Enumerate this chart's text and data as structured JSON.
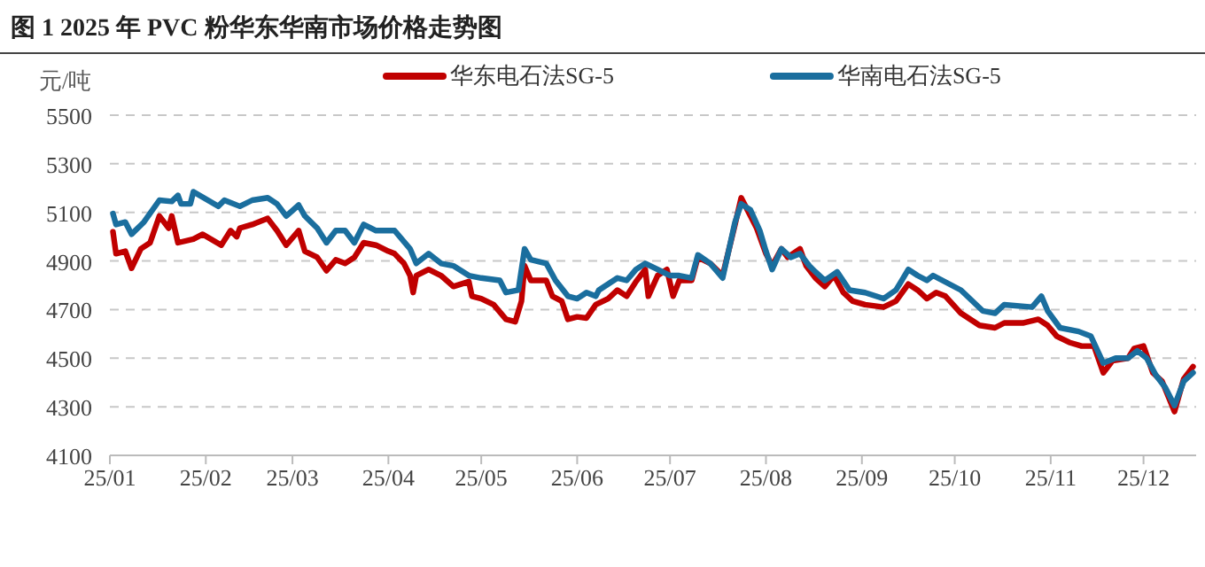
{
  "chart_data": {
    "type": "line",
    "title": "图 1 2025 年 PVC 粉华东华南市场价格走势图",
    "ylabel": "元/吨",
    "xlim": [
      "2025-01-01",
      "2025-12-18"
    ],
    "xticks": [
      {
        "value": "2025-01-01",
        "label": "25/01"
      },
      {
        "value": "2025-02-01",
        "label": "25/02"
      },
      {
        "value": "2025-03-01",
        "label": "25/03"
      },
      {
        "value": "2025-04-01",
        "label": "25/04"
      },
      {
        "value": "2025-05-01",
        "label": "25/05"
      },
      {
        "value": "2025-06-01",
        "label": "25/06"
      },
      {
        "value": "2025-07-01",
        "label": "25/07"
      },
      {
        "value": "2025-08-01",
        "label": "25/08"
      },
      {
        "value": "2025-09-01",
        "label": "25/09"
      },
      {
        "value": "2025-10-01",
        "label": "25/10"
      },
      {
        "value": "2025-11-01",
        "label": "25/11"
      },
      {
        "value": "2025-12-01",
        "label": "25/12"
      }
    ],
    "ylim": [
      4100,
      5500
    ],
    "yticks": [
      4100,
      4300,
      4500,
      4700,
      4900,
      5100,
      5300,
      5500
    ],
    "grid": "y",
    "legend": "top",
    "series": [
      {
        "name": "华东电石法SG-5",
        "color": "#c00000",
        "x": [
          "2025-01-02",
          "2025-01-03",
          "2025-01-06",
          "2025-01-08",
          "2025-01-11",
          "2025-01-14",
          "2025-01-17",
          "2025-01-20",
          "2025-01-21",
          "2025-01-23",
          "2025-01-28",
          "2025-01-31",
          "2025-02-06",
          "2025-02-09",
          "2025-02-11",
          "2025-02-12",
          "2025-02-16",
          "2025-02-21",
          "2025-02-24",
          "2025-02-27",
          "2025-03-03",
          "2025-03-05",
          "2025-03-09",
          "2025-03-12",
          "2025-03-15",
          "2025-03-18",
          "2025-03-21",
          "2025-03-24",
          "2025-03-28",
          "2025-04-01",
          "2025-04-03",
          "2025-04-06",
          "2025-04-08",
          "2025-04-09",
          "2025-04-10",
          "2025-04-14",
          "2025-04-18",
          "2025-04-22",
          "2025-04-27",
          "2025-04-28",
          "2025-05-01",
          "2025-05-05",
          "2025-05-09",
          "2025-05-12",
          "2025-05-14",
          "2025-05-15",
          "2025-05-17",
          "2025-05-22",
          "2025-05-24",
          "2025-05-27",
          "2025-05-29",
          "2025-06-01",
          "2025-06-04",
          "2025-06-07",
          "2025-06-11",
          "2025-06-14",
          "2025-06-17",
          "2025-06-20",
          "2025-06-23",
          "2025-06-24",
          "2025-06-27",
          "2025-06-30",
          "2025-07-02",
          "2025-07-04",
          "2025-07-08",
          "2025-07-10",
          "2025-07-14",
          "2025-07-18",
          "2025-07-22",
          "2025-07-24",
          "2025-07-27",
          "2025-07-29",
          "2025-08-01",
          "2025-08-03",
          "2025-08-06",
          "2025-08-08",
          "2025-08-12",
          "2025-08-14",
          "2025-08-17",
          "2025-08-20",
          "2025-08-23",
          "2025-08-26",
          "2025-08-29",
          "2025-09-02",
          "2025-09-08",
          "2025-09-12",
          "2025-09-16",
          "2025-09-19",
          "2025-09-22",
          "2025-09-25",
          "2025-09-28",
          "2025-10-03",
          "2025-10-09",
          "2025-10-14",
          "2025-10-17",
          "2025-10-23",
          "2025-10-28",
          "2025-10-31",
          "2025-11-03",
          "2025-11-07",
          "2025-11-11",
          "2025-11-15",
          "2025-11-18",
          "2025-11-21",
          "2025-11-26",
          "2025-11-28",
          "2025-12-01",
          "2025-12-04",
          "2025-12-07",
          "2025-12-11",
          "2025-12-14",
          "2025-12-17"
        ],
        "values": [
          5020,
          4930,
          4940,
          4870,
          4950,
          4975,
          5085,
          5035,
          5085,
          4975,
          4990,
          5010,
          4965,
          5025,
          5000,
          5035,
          5050,
          5075,
          5025,
          4965,
          5025,
          4940,
          4915,
          4860,
          4905,
          4890,
          4915,
          4975,
          4965,
          4940,
          4930,
          4890,
          4840,
          4770,
          4840,
          4865,
          4840,
          4795,
          4815,
          4755,
          4745,
          4720,
          4660,
          4650,
          4735,
          4880,
          4820,
          4820,
          4755,
          4735,
          4660,
          4670,
          4665,
          4720,
          4745,
          4780,
          4755,
          4815,
          4865,
          4755,
          4840,
          4865,
          4755,
          4820,
          4820,
          4915,
          4890,
          4840,
          5050,
          5160,
          5085,
          5035,
          4930,
          4880,
          4950,
          4915,
          4950,
          4880,
          4830,
          4795,
          4840,
          4770,
          4735,
          4720,
          4710,
          4735,
          4805,
          4780,
          4745,
          4770,
          4755,
          4685,
          4635,
          4625,
          4645,
          4645,
          4660,
          4635,
          4590,
          4565,
          4550,
          4550,
          4440,
          4490,
          4500,
          4540,
          4550,
          4440,
          4405,
          4280,
          4415,
          4465
        ]
      },
      {
        "name": "华南电石法SG-5",
        "color": "#1a6e9e",
        "x": [
          "2025-01-02",
          "2025-01-03",
          "2025-01-06",
          "2025-01-08",
          "2025-01-12",
          "2025-01-17",
          "2025-01-21",
          "2025-01-23",
          "2025-01-24",
          "2025-01-27",
          "2025-01-28",
          "2025-02-05",
          "2025-02-07",
          "2025-02-12",
          "2025-02-16",
          "2025-02-21",
          "2025-02-24",
          "2025-02-27",
          "2025-03-03",
          "2025-03-05",
          "2025-03-09",
          "2025-03-12",
          "2025-03-15",
          "2025-03-18",
          "2025-03-21",
          "2025-03-24",
          "2025-03-28",
          "2025-04-03",
          "2025-04-08",
          "2025-04-10",
          "2025-04-14",
          "2025-04-18",
          "2025-04-22",
          "2025-04-27",
          "2025-05-01",
          "2025-05-07",
          "2025-05-09",
          "2025-05-13",
          "2025-05-15",
          "2025-05-17",
          "2025-05-22",
          "2025-05-25",
          "2025-05-29",
          "2025-06-01",
          "2025-06-04",
          "2025-06-07",
          "2025-06-08",
          "2025-06-14",
          "2025-06-17",
          "2025-06-20",
          "2025-06-23",
          "2025-06-27",
          "2025-07-01",
          "2025-07-04",
          "2025-07-08",
          "2025-07-10",
          "2025-07-14",
          "2025-07-18",
          "2025-07-22",
          "2025-07-24",
          "2025-07-27",
          "2025-07-30",
          "2025-08-01",
          "2025-08-03",
          "2025-08-06",
          "2025-08-09",
          "2025-08-12",
          "2025-08-15",
          "2025-08-17",
          "2025-08-20",
          "2025-08-24",
          "2025-08-28",
          "2025-09-02",
          "2025-09-08",
          "2025-09-12",
          "2025-09-16",
          "2025-09-19",
          "2025-09-22",
          "2025-09-24",
          "2025-10-03",
          "2025-10-10",
          "2025-10-14",
          "2025-10-17",
          "2025-10-26",
          "2025-10-29",
          "2025-10-31",
          "2025-11-04",
          "2025-11-10",
          "2025-11-14",
          "2025-11-18",
          "2025-11-22",
          "2025-11-26",
          "2025-11-29",
          "2025-12-02",
          "2025-12-05",
          "2025-12-08",
          "2025-12-11",
          "2025-12-14",
          "2025-12-17"
        ],
        "values": [
          5095,
          5050,
          5060,
          5010,
          5060,
          5150,
          5145,
          5170,
          5135,
          5135,
          5185,
          5125,
          5150,
          5125,
          5150,
          5160,
          5135,
          5085,
          5130,
          5085,
          5035,
          4975,
          5025,
          5025,
          4975,
          5050,
          5025,
          5025,
          4950,
          4890,
          4930,
          4890,
          4880,
          4840,
          4830,
          4820,
          4770,
          4780,
          4950,
          4905,
          4890,
          4820,
          4755,
          4745,
          4770,
          4755,
          4780,
          4830,
          4820,
          4865,
          4890,
          4865,
          4840,
          4840,
          4830,
          4925,
          4890,
          4830,
          5060,
          5135,
          5110,
          5025,
          4940,
          4865,
          4950,
          4915,
          4930,
          4880,
          4855,
          4820,
          4855,
          4780,
          4770,
          4745,
          4780,
          4865,
          4840,
          4820,
          4840,
          4780,
          4695,
          4685,
          4720,
          4710,
          4755,
          4695,
          4625,
          4610,
          4590,
          4480,
          4500,
          4500,
          4530,
          4500,
          4430,
          4380,
          4305,
          4405,
          4440
        ]
      }
    ]
  }
}
